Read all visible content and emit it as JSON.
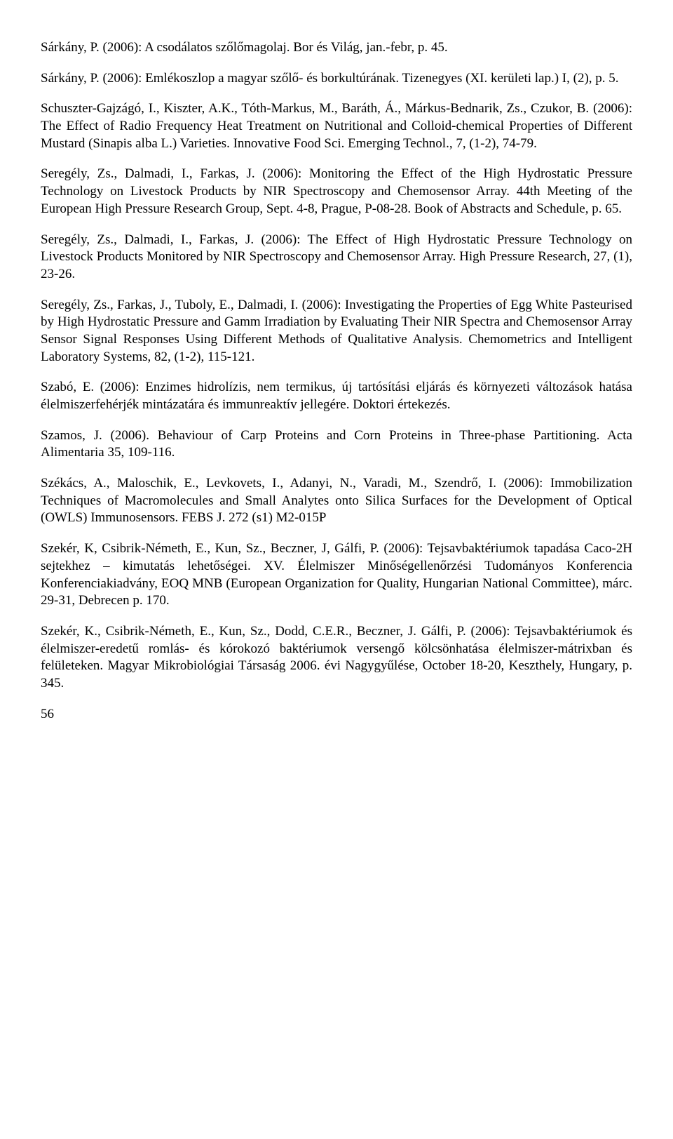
{
  "refs": [
    "Sárkány, P. (2006): A csodálatos szőlőmagolaj. Bor és Világ, jan.-febr, p. 45.",
    "Sárkány, P. (2006): Emlékoszlop a magyar szőlő- és borkultúrának. Tizenegyes (XI. kerületi lap.) I, (2), p. 5.",
    "Schuszter-Gajzágó, I., Kiszter, A.K., Tóth-Markus, M., Baráth, Á., Márkus-Bednarik, Zs., Czukor, B. (2006): The Effect of Radio Frequency Heat Treatment on Nutritional and Colloid-chemical Properties of Different Mustard (Sinapis alba L.) Varieties. Innovative Food Sci. Emerging Technol., 7, (1-2), 74-79.",
    "Seregély, Zs., Dalmadi, I., Farkas, J. (2006): Monitoring the Effect of the High Hydrostatic Pressure Technology on Livestock Products by NIR Spectroscopy and Chemosensor Array. 44th Meeting of the European High Pressure Research Group, Sept. 4-8, Prague, P-08-28. Book of Abstracts and Schedule, p. 65.",
    "Seregély, Zs., Dalmadi, I., Farkas, J. (2006): The Effect of High Hydrostatic Pressure Technology on Livestock Products Monitored by NIR Spectroscopy and Chemosensor Array. High Pressure Research, 27, (1), 23-26.",
    "Seregély, Zs., Farkas, J., Tuboly, E., Dalmadi, I. (2006): Investigating the Properties of Egg White Pasteurised by High Hydrostatic Pressure and Gamm Irradiation by Evaluating Their NIR Spectra and Chemosensor Array Sensor Signal Responses Using Different Methods of Qualitative Analysis. Chemometrics and Intelligent Laboratory Systems, 82, (1-2), 115-121.",
    "Szabó, E. (2006): Enzimes hidrolízis, nem termikus, új tartósítási eljárás és környezeti változások hatása élelmiszerfehérjék mintázatára és immunreaktív jellegére. Doktori értekezés.",
    "Szamos, J. (2006). Behaviour of Carp Proteins and Corn Proteins in Three-phase Partitioning. Acta Alimentaria 35, 109-116.",
    "Székács, A., Maloschik, E., Levkovets, I., Adanyi, N., Varadi, M., Szendrő, I. (2006): Immobilization Techniques of Macromolecules and Small Analytes onto Silica Surfaces for the Development of Optical (OWLS) Immunosensors. FEBS J.  272 (s1) M2-015P",
    "Szekér, K, Csibrik-Németh, E., Kun, Sz., Beczner, J, Gálfi, P. (2006): Tejsavbaktériumok tapadása Caco-2H sejtekhez – kimutatás lehetőségei. XV. Élelmiszer Minőségellenőrzési Tudományos Konferencia Konferenciakiadvány, EOQ MNB (European Organization for Quality, Hungarian National Committee), márc. 29-31, Debrecen p. 170.",
    "Szekér, K., Csibrik-Németh, E., Kun, Sz., Dodd, C.E.R., Beczner, J. Gálfi, P. (2006): Tejsavbaktériumok és élelmiszer-eredetű romlás- és kórokozó baktériumok versengő kölcsönhatása élelmiszer-mátrixban és felületeken. Magyar Mikrobiológiai Társaság 2006. évi Nagygyűlése, October 18-20, Keszthely, Hungary, p. 345."
  ],
  "page_number": "56"
}
